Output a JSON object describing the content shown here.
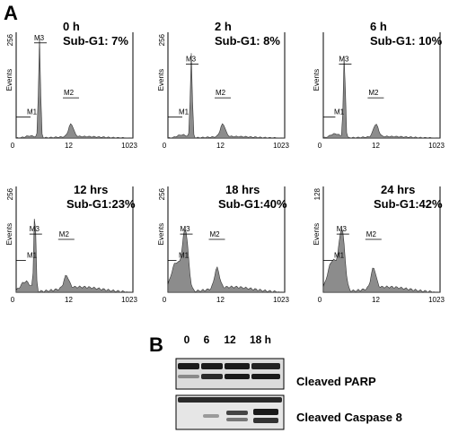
{
  "panel_a": {
    "letter": "A",
    "ylabel": "Events",
    "x_ticks": [
      "0",
      "12",
      "1023"
    ],
    "markers": [
      "M1",
      "M2",
      "M3"
    ],
    "histograms": [
      {
        "time": "0 h",
        "subg1": "Sub-G1: 7%",
        "ymax": "256"
      },
      {
        "time": "2 h",
        "subg1": "Sub-G1: 8%",
        "ymax": "256"
      },
      {
        "time": "6 h",
        "subg1": "Sub-G1: 10%",
        "ymax": ""
      },
      {
        "time": "12 hrs",
        "subg1": "Sub-G1:23%",
        "ymax": "256"
      },
      {
        "time": "18 hrs",
        "subg1": "Sub-G1:40%",
        "ymax": "256"
      },
      {
        "time": "24 hrs",
        "subg1": "Sub-G1:42%",
        "ymax": "128"
      }
    ]
  },
  "panel_b": {
    "letter": "B",
    "lanes": [
      "0",
      "6",
      "12",
      "18 h"
    ],
    "blots": [
      "Cleaved PARP",
      "Cleaved Caspase 8"
    ]
  },
  "colors": {
    "fill": "#8c8c8c",
    "axis": "#000000",
    "band": "#1a1a1a"
  }
}
